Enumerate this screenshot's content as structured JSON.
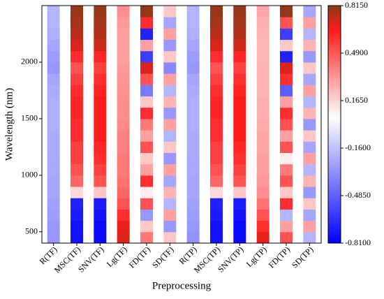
{
  "chart_data": {
    "type": "heatmap",
    "xlabel": "Preprocessing",
    "ylabel": "Wavelength (nm)",
    "categories": [
      "R(TF)",
      "MSC(TF)",
      "SNV(TF)",
      "Lg(TF)",
      "FD(TF)",
      "SD(TF)",
      "R(TP)",
      "MSC(TP)",
      "SNV(TP)",
      "Lg(TP)",
      "FD(TP)",
      "SD(TP)"
    ],
    "y": [
      450,
      550,
      650,
      750,
      850,
      950,
      1050,
      1150,
      1250,
      1350,
      1450,
      1550,
      1650,
      1750,
      1850,
      1950,
      2050,
      2150,
      2250,
      2350,
      2450
    ],
    "values": [
      [
        -0.3,
        -0.3,
        -0.28,
        -0.27,
        -0.25,
        -0.25,
        -0.24,
        -0.24,
        -0.23,
        -0.23,
        -0.22,
        -0.22,
        -0.22,
        -0.23,
        -0.25,
        -0.3,
        -0.28,
        -0.25,
        -0.22,
        -0.2,
        -0.2
      ],
      [
        -0.75,
        -0.75,
        -0.72,
        -0.7,
        0.15,
        0.45,
        0.5,
        0.55,
        0.55,
        0.6,
        0.6,
        0.62,
        0.62,
        0.6,
        0.55,
        0.5,
        0.6,
        0.7,
        0.75,
        0.78,
        0.8
      ],
      [
        -0.78,
        -0.78,
        -0.75,
        -0.72,
        0.2,
        0.5,
        0.55,
        0.6,
        0.62,
        0.65,
        0.65,
        0.65,
        0.65,
        0.63,
        0.6,
        0.55,
        0.62,
        0.72,
        0.76,
        0.78,
        0.8
      ],
      [
        0.7,
        0.68,
        0.6,
        0.5,
        0.45,
        0.42,
        0.4,
        0.4,
        0.38,
        0.38,
        0.36,
        0.35,
        0.35,
        0.34,
        0.33,
        0.32,
        0.3,
        0.3,
        0.3,
        0.32,
        0.35
      ],
      [
        0.4,
        0.2,
        -0.3,
        0.5,
        0.1,
        0.6,
        0.3,
        0.2,
        0.5,
        0.3,
        0.4,
        0.6,
        0.2,
        -0.4,
        0.5,
        0.7,
        -0.6,
        0.3,
        -0.7,
        0.6,
        0.8
      ],
      [
        0.2,
        -0.3,
        0.3,
        -0.2,
        0.25,
        -0.25,
        0.3,
        -0.3,
        0.2,
        -0.2,
        0.3,
        -0.3,
        0.25,
        -0.2,
        0.3,
        -0.35,
        0.2,
        -0.3,
        0.3,
        -0.25,
        0.2
      ],
      [
        -0.32,
        -0.3,
        -0.28,
        -0.27,
        -0.25,
        -0.25,
        -0.24,
        -0.24,
        -0.23,
        -0.23,
        -0.22,
        -0.22,
        -0.22,
        -0.23,
        -0.25,
        -0.3,
        -0.28,
        -0.25,
        -0.22,
        -0.2,
        -0.2
      ],
      [
        -0.75,
        -0.75,
        -0.72,
        -0.7,
        0.15,
        0.45,
        0.5,
        0.55,
        0.55,
        0.6,
        0.6,
        0.62,
        0.62,
        0.6,
        0.55,
        0.5,
        0.6,
        0.7,
        0.75,
        0.78,
        0.8
      ],
      [
        -0.78,
        -0.78,
        -0.75,
        -0.72,
        0.2,
        0.5,
        0.55,
        0.6,
        0.62,
        0.65,
        0.65,
        0.65,
        0.65,
        0.63,
        0.6,
        0.55,
        0.62,
        0.72,
        0.76,
        0.78,
        0.8
      ],
      [
        0.68,
        0.6,
        0.5,
        0.42,
        0.35,
        0.32,
        0.3,
        0.3,
        0.28,
        0.28,
        0.27,
        0.26,
        0.26,
        0.25,
        0.25,
        0.25,
        0.24,
        0.24,
        0.25,
        0.26,
        0.28
      ],
      [
        0.5,
        0.3,
        -0.2,
        0.6,
        0.2,
        0.5,
        0.4,
        0.1,
        0.5,
        0.3,
        0.5,
        0.6,
        0.3,
        -0.5,
        0.6,
        0.7,
        -0.7,
        0.2,
        -0.6,
        0.5,
        0.8
      ],
      [
        -0.2,
        0.3,
        -0.25,
        0.2,
        -0.3,
        0.25,
        -0.2,
        0.3,
        -0.25,
        0.2,
        -0.3,
        0.25,
        -0.2,
        0.3,
        -0.25,
        0.2,
        -0.3,
        0.25,
        -0.2,
        0.3,
        -0.25
      ]
    ],
    "ylim": [
      400,
      2500
    ],
    "yticks": [
      500,
      1000,
      1500,
      2000
    ],
    "clim": [
      -0.81,
      0.815
    ],
    "cticks": [
      {
        "value": -0.81,
        "label": "-0.8100"
      },
      {
        "value": -0.485,
        "label": "-0.4850"
      },
      {
        "value": -0.16,
        "label": "-0.1600"
      },
      {
        "value": 0.165,
        "label": "0.1650"
      },
      {
        "value": 0.49,
        "label": "0.4900"
      },
      {
        "value": 0.815,
        "label": "0.8150"
      }
    ],
    "colormap": [
      [
        -0.81,
        "#0000ff"
      ],
      [
        0.05,
        "#ffffff"
      ],
      [
        0.65,
        "#ff1a1a"
      ],
      [
        0.815,
        "#8b3a1a"
      ]
    ]
  }
}
